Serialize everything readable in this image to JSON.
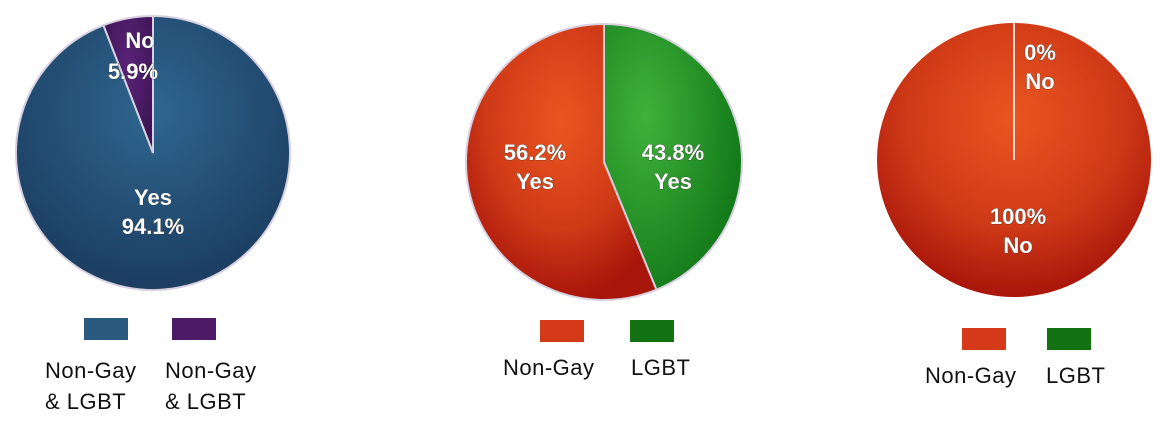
{
  "chart_data": [
    {
      "type": "pie",
      "slices": [
        {
          "label": "Yes",
          "value": 94.1,
          "value_label": "94.1%",
          "color": "#24517a"
        },
        {
          "label": "No",
          "value": 5.9,
          "value_label": "5.9%",
          "color": "#4d1a66"
        }
      ],
      "legend": [
        {
          "text_line1": "Non-Gay",
          "text_line2": "& LGBT",
          "color": "#2a5a80"
        },
        {
          "text_line1": "Non-Gay",
          "text_line2": "& LGBT",
          "color": "#4d1a66"
        }
      ],
      "legend_placement": "bottom"
    },
    {
      "type": "pie",
      "slices": [
        {
          "label": "Yes",
          "value": 43.8,
          "value_label": "43.8%",
          "color": "#2a9a2a"
        },
        {
          "label": "Yes",
          "value": 56.2,
          "value_label": "56.2%",
          "color": "#d8401c"
        }
      ],
      "legend": [
        {
          "text_line1": "Non-Gay",
          "color": "#d53a1a"
        },
        {
          "text_line1": "LGBT",
          "color": "#137313"
        }
      ],
      "legend_placement": "bottom"
    },
    {
      "type": "pie",
      "slices": [
        {
          "label": "No",
          "value": 0,
          "value_label": "0%",
          "color": "#d8401c"
        },
        {
          "label": "No",
          "value": 100,
          "value_label": "100%",
          "color": "#d8401c"
        }
      ],
      "legend": [
        {
          "text_line1": "Non-Gay",
          "color": "#d53a1a"
        },
        {
          "text_line1": "LGBT",
          "color": "#137313"
        }
      ],
      "legend_placement": "bottom"
    }
  ]
}
